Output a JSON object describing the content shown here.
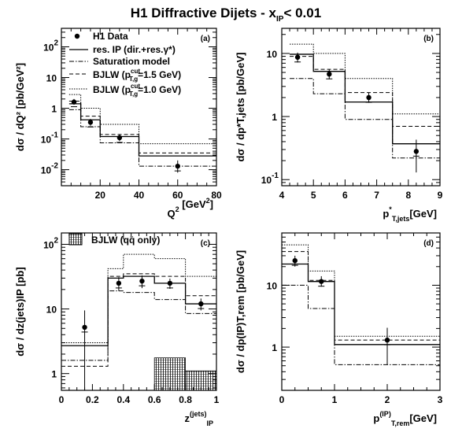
{
  "figure": {
    "title": "H1 Diffractive Dijets  -  x",
    "title_sub": "IP",
    "title_tail": "< 0.01"
  },
  "legend": {
    "data": "H1 Data",
    "resip": "res. IP (dir.+res.γ*)",
    "sat": "Saturation model",
    "bj15_pre": "BJLW (p",
    "bj15_sup": "cut",
    "bj15_sub": "T,g",
    "bj15_post": "=1.5 GeV)",
    "bj10_pre": "BJLW (p",
    "bj10_sup": "cut",
    "bj10_sub": "T,g",
    "bj10_post": "=1.0 GeV)",
    "qq": "BJLW (qq̄ only)"
  },
  "chart_data": [
    {
      "type": "line",
      "panel_label": "(a)",
      "xlabel_main": "Q",
      "xlabel_sup": "2",
      "xlabel_unit": " [GeV",
      "xlabel_unit_sup": "2",
      "xlabel_unit_end": "]",
      "ylabel": "dσ / dQ² [pb/GeV²]",
      "xlim": [
        0,
        80
      ],
      "ylim": [
        0.003,
        400
      ],
      "log_y": true,
      "x_ticks": [
        "20",
        "40",
        "60",
        "80"
      ],
      "y_ticks": [
        {
          "base": "10",
          "exp": "2",
          "v": 100
        },
        {
          "base": "10",
          "exp": "",
          "v": 10
        },
        {
          "base": "1",
          "exp": "",
          "v": 1
        },
        {
          "base": "10",
          "exp": "-1",
          "v": 0.1
        },
        {
          "base": "10",
          "exp": "-2",
          "v": 0.01
        }
      ],
      "bins": [
        [
          4,
          10
        ],
        [
          10,
          20
        ],
        [
          20,
          40
        ],
        [
          40,
          80
        ]
      ],
      "data_points": [
        {
          "x": 6.5,
          "y": 1.6,
          "err": [
            1.3,
            2.0
          ]
        },
        {
          "x": 15,
          "y": 0.35,
          "err": [
            0.27,
            0.45
          ]
        },
        {
          "x": 30,
          "y": 0.11,
          "err": [
            0.085,
            0.14
          ]
        },
        {
          "x": 60,
          "y": 0.013,
          "err": [
            0.008,
            0.02
          ]
        }
      ],
      "series": [
        {
          "key": "resip",
          "values": [
            1.4,
            0.42,
            0.12,
            0.028
          ]
        },
        {
          "key": "sat",
          "values": [
            0.9,
            0.25,
            0.075,
            0.013
          ]
        },
        {
          "key": "bj15",
          "values": [
            1.7,
            0.55,
            0.14,
            0.035
          ]
        },
        {
          "key": "bj10",
          "values": [
            2.8,
            1.0,
            0.3,
            0.07
          ]
        }
      ]
    },
    {
      "type": "line",
      "panel_label": "(b)",
      "xlabel_main": "p",
      "xlabel_sup": "*",
      "xlabel_sub": "T,jets",
      "xlabel_unit": "[GeV]",
      "ylabel": "dσ / dp*T,jets [pb/GeV]",
      "xlim": [
        4,
        9
      ],
      "ylim": [
        0.08,
        25
      ],
      "log_y": true,
      "x_ticks": [
        "4",
        "5",
        "6",
        "7",
        "8",
        "9"
      ],
      "y_ticks": [
        {
          "base": "10",
          "exp": "",
          "v": 10
        },
        {
          "base": "1",
          "exp": "",
          "v": 1
        },
        {
          "base": "10",
          "exp": "-1",
          "v": 0.1
        }
      ],
      "bins": [
        [
          4.25,
          5.0
        ],
        [
          5.0,
          6.0
        ],
        [
          6.0,
          7.5
        ],
        [
          7.5,
          9.0
        ]
      ],
      "data_points": [
        {
          "x": 4.5,
          "y": 8.7,
          "err": [
            7.2,
            10.3
          ]
        },
        {
          "x": 5.5,
          "y": 4.7,
          "err": [
            3.9,
            5.6
          ]
        },
        {
          "x": 6.75,
          "y": 2.0,
          "err": [
            1.65,
            2.4
          ]
        },
        {
          "x": 8.25,
          "y": 0.28,
          "err": [
            0.13,
            0.43
          ]
        }
      ],
      "series": [
        {
          "key": "resip",
          "values": [
            9.7,
            5.2,
            1.7,
            0.37
          ]
        },
        {
          "key": "sat",
          "values": [
            4.0,
            2.3,
            0.9,
            0.22
          ]
        },
        {
          "key": "bj15",
          "values": [
            9.0,
            5.6,
            2.4,
            0.7
          ]
        },
        {
          "key": "bj10",
          "values": [
            14.0,
            10.0,
            4.0,
            1.1
          ]
        }
      ]
    },
    {
      "type": "line",
      "panel_label": "(c)",
      "xlabel_main": "z",
      "xlabel_sup": "(jets)",
      "xlabel_sub": "IP",
      "ylabel": "dσ / dz(jets)IP [pb]",
      "xlim": [
        0,
        1
      ],
      "ylim": [
        0.55,
        150
      ],
      "log_y": true,
      "x_ticks": [
        "0",
        "0.2",
        "0.4",
        "0.6",
        "0.8",
        "1"
      ],
      "y_ticks": [
        {
          "base": "10",
          "exp": "2",
          "v": 100
        },
        {
          "base": "10",
          "exp": "",
          "v": 10
        },
        {
          "base": "1",
          "exp": "",
          "v": 1
        }
      ],
      "bins": [
        [
          0.0,
          0.3
        ],
        [
          0.3,
          0.4
        ],
        [
          0.4,
          0.6
        ],
        [
          0.6,
          0.8
        ],
        [
          0.8,
          1.0
        ]
      ],
      "data_points": [
        {
          "x": 0.15,
          "y": 5.2,
          "err": [
            0.55,
            9.5
          ]
        },
        {
          "x": 0.37,
          "y": 25.0,
          "err": [
            19.0,
            31.0
          ]
        },
        {
          "x": 0.52,
          "y": 27.0,
          "err": [
            21.0,
            33.0
          ]
        },
        {
          "x": 0.7,
          "y": 25.0,
          "err": [
            20.5,
            29.5
          ]
        },
        {
          "x": 0.9,
          "y": 12.0,
          "err": [
            9.5,
            14.5
          ]
        }
      ],
      "series": [
        {
          "key": "resip",
          "values": [
            2.7,
            30.0,
            32.0,
            25.0,
            12.0
          ]
        },
        {
          "key": "sat",
          "values": [
            1.6,
            19.0,
            18.0,
            14.0,
            8.5
          ]
        },
        {
          "key": "bj15",
          "values": [
            1.3,
            32.0,
            35.0,
            32.0,
            16.0
          ]
        },
        {
          "key": "bj10",
          "values": [
            3.0,
            42.0,
            70.0,
            60.0,
            32.0
          ]
        }
      ],
      "qq_bins": [
        [
          0.6,
          0.8,
          1.75
        ],
        [
          0.8,
          1.0,
          1.1
        ]
      ]
    },
    {
      "type": "line",
      "panel_label": "(d)",
      "xlabel_main": "p",
      "xlabel_sup": "(IP)",
      "xlabel_sub": "T,rem",
      "xlabel_unit": "[GeV]",
      "ylabel": "dσ / dp(IP)T,rem [pb/GeV]",
      "xlim": [
        0,
        3
      ],
      "ylim": [
        0.2,
        70
      ],
      "log_y": true,
      "x_ticks": [
        "0",
        "1",
        "2",
        "3"
      ],
      "y_ticks": [
        {
          "base": "10",
          "exp": "",
          "v": 10
        },
        {
          "base": "1",
          "exp": "",
          "v": 1
        }
      ],
      "bins": [
        [
          0.0,
          0.5
        ],
        [
          0.5,
          1.0
        ],
        [
          1.0,
          3.0
        ]
      ],
      "data_points": [
        {
          "x": 0.25,
          "y": 25.0,
          "err": [
            20.0,
            30.0
          ]
        },
        {
          "x": 0.75,
          "y": 11.5,
          "err": [
            9.5,
            14.0
          ]
        },
        {
          "x": 2.0,
          "y": 1.3,
          "err": [
            0.52,
            2.05
          ]
        }
      ],
      "series": [
        {
          "key": "resip",
          "values": [
            22.0,
            11.5,
            1.1
          ]
        },
        {
          "key": "sat",
          "values": [
            10.0,
            4.2,
            0.52
          ]
        },
        {
          "key": "bj15",
          "values": [
            35.0,
            12.0,
            1.3
          ]
        },
        {
          "key": "bj10",
          "values": [
            45.0,
            17.0,
            1.5
          ]
        }
      ]
    }
  ],
  "styles": {
    "resip": {
      "dash": "",
      "width": 1.3
    },
    "sat": {
      "dash": "6 2 1.5 2",
      "width": 1.0
    },
    "bj15": {
      "dash": "5 3",
      "width": 1.0
    },
    "bj10": {
      "dash": "1.5 1.5",
      "width": 1.0
    },
    "color": "#000000"
  }
}
